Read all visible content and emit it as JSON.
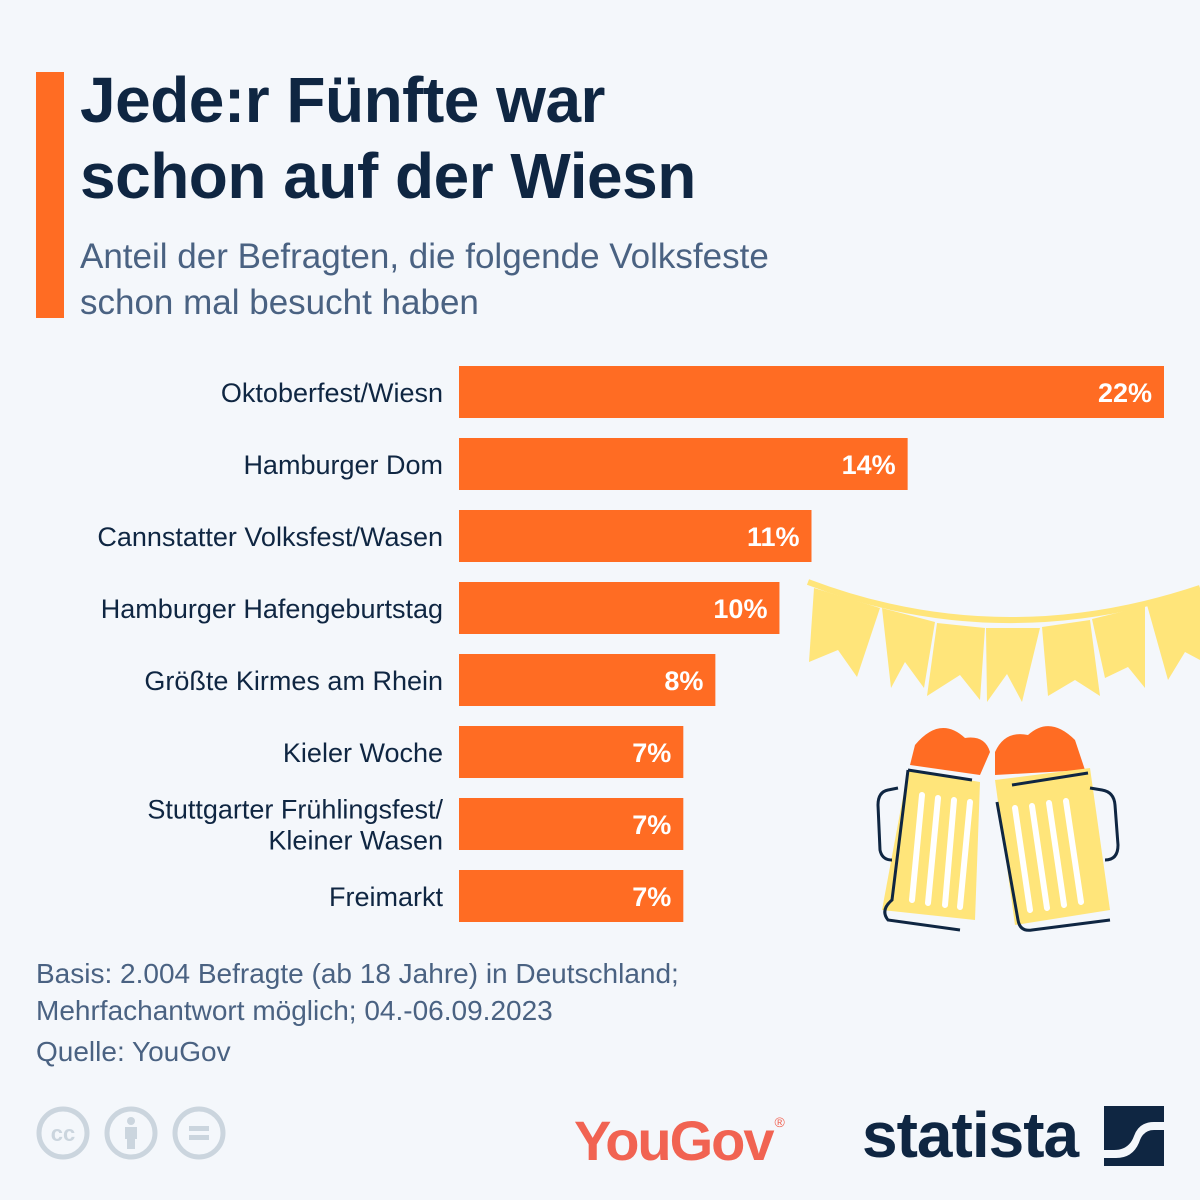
{
  "header": {
    "title_line1": "Jede:r Fünfte war",
    "title_line2": "schon auf der Wiesn",
    "subtitle_line1": "Anteil der Befragten, die folgende Volksfeste",
    "subtitle_line2": "schon mal besucht haben"
  },
  "colors": {
    "accent": "#ff6c23",
    "bar": "#ff6c23",
    "title": "#0f2642",
    "text": "#4a6282",
    "bunting": "#ffe57a",
    "yougov": "#f16352"
  },
  "chart_data": {
    "type": "bar",
    "orientation": "horizontal",
    "title": "Jede:r Fünfte war schon auf der Wiesn",
    "subtitle": "Anteil der Befragten, die folgende Volksfeste schon mal besucht haben",
    "xlabel": "",
    "ylabel": "",
    "unit": "%",
    "xlim": [
      0,
      22
    ],
    "grid": false,
    "legend": "none",
    "categories": [
      [
        "Oktoberfest/Wiesn"
      ],
      [
        "Hamburger Dom"
      ],
      [
        "Cannstatter Volksfest/Wasen"
      ],
      [
        "Hamburger Hafengeburtstag"
      ],
      [
        "Größte Kirmes am Rhein"
      ],
      [
        "Kieler Woche"
      ],
      [
        "Stuttgarter Frühlingsfest/",
        "Kleiner Wasen"
      ],
      [
        "Freimarkt"
      ]
    ],
    "values": [
      22,
      14,
      11,
      10,
      8,
      7,
      7,
      7
    ],
    "data_labels": [
      "22%",
      "14%",
      "11%",
      "10%",
      "8%",
      "7%",
      "7%",
      "7%"
    ]
  },
  "footer": {
    "note_line1": "Basis: 2.004 Befragte (ab 18 Jahre) in Deutschland;",
    "note_line2": "Mehrfachantwort möglich; 04.-06.09.2023",
    "source": "Quelle: YouGov",
    "license_icons": [
      "cc-icon",
      "attribution-icon",
      "no-derivatives-icon"
    ],
    "partner_logo": "YouGov",
    "partner_logo_mark": "®",
    "brand_logo": "statista"
  }
}
